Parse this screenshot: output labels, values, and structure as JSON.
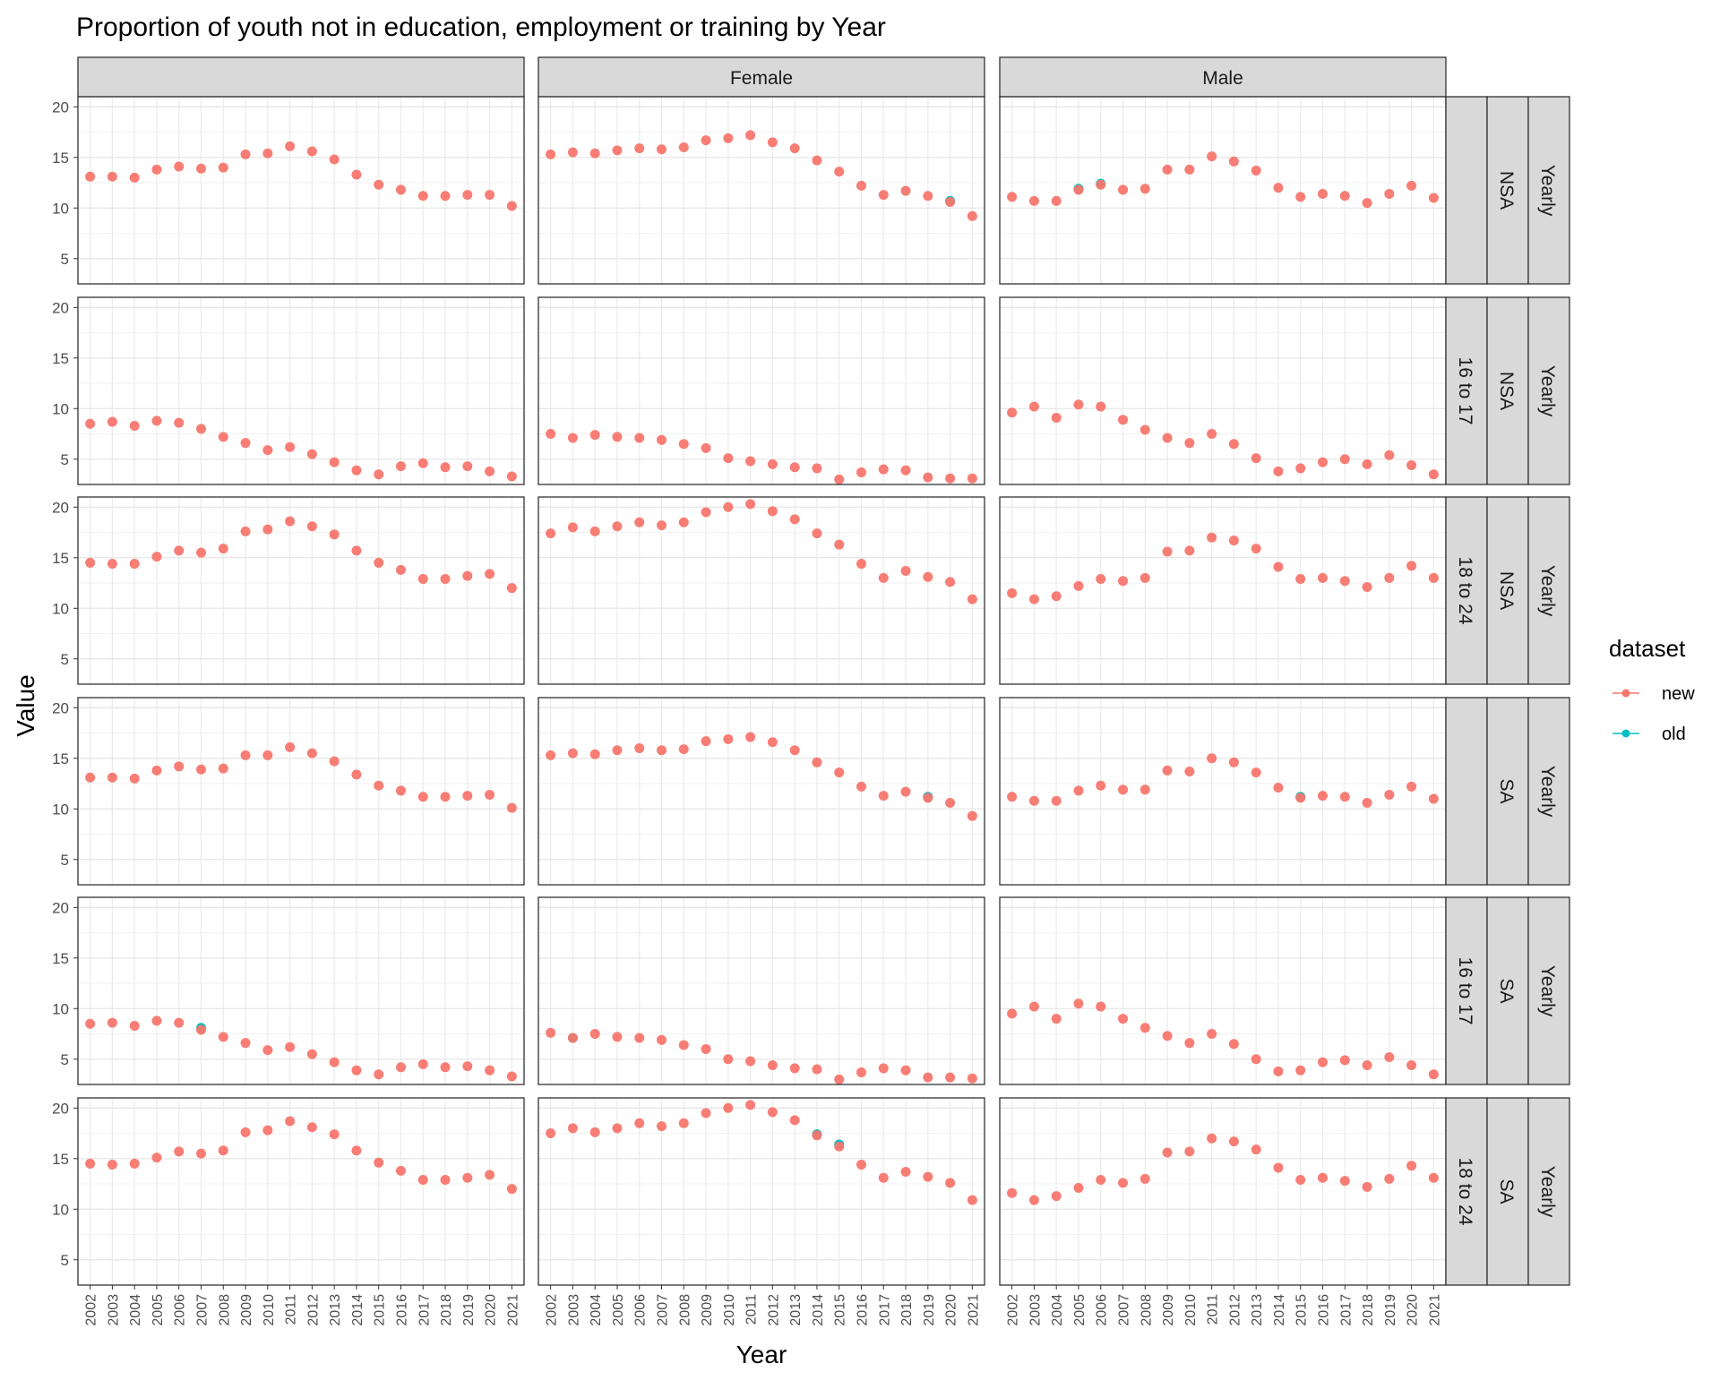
{
  "chart_data": {
    "type": "scatter",
    "title": "Proportion of youth not in education, employment or training by Year",
    "xlabel": "Year",
    "ylabel": "Value",
    "ylim": [
      2.5,
      21
    ],
    "y_ticks": [
      5,
      10,
      15,
      20
    ],
    "x": [
      2002,
      2003,
      2004,
      2005,
      2006,
      2007,
      2008,
      2009,
      2010,
      2011,
      2012,
      2013,
      2014,
      2015,
      2016,
      2017,
      2018,
      2019,
      2020,
      2021
    ],
    "grid": true,
    "col_strips": [
      "",
      "Female",
      "Male"
    ],
    "row_strips": [
      [
        "",
        "NSA",
        "Yearly"
      ],
      [
        "16 to 17",
        "NSA",
        "Yearly"
      ],
      [
        "18 to 24",
        "NSA",
        "Yearly"
      ],
      [
        "",
        "SA",
        "Yearly"
      ],
      [
        "16 to 17",
        "SA",
        "Yearly"
      ],
      [
        "18 to 24",
        "SA",
        "Yearly"
      ]
    ],
    "legend": {
      "title": "dataset",
      "position": "right",
      "entries": [
        {
          "label": "new",
          "color": "#F8766D"
        },
        {
          "label": "old",
          "color": "#00BFC4"
        }
      ]
    },
    "series_colors": {
      "new": "#F8766D",
      "old": "#00BFC4"
    },
    "panels": [
      [
        [
          13.1,
          13.1,
          13.0,
          13.8,
          14.1,
          13.9,
          14.0,
          15.3,
          15.4,
          16.1,
          15.6,
          14.8,
          13.3,
          12.3,
          11.8,
          11.2,
          11.2,
          11.3,
          11.3,
          10.2
        ],
        [
          15.3,
          15.5,
          15.4,
          15.7,
          15.9,
          15.8,
          16.0,
          16.7,
          16.9,
          17.2,
          16.5,
          15.9,
          14.7,
          13.6,
          12.2,
          11.3,
          11.7,
          11.2,
          10.6,
          9.2
        ],
        [
          11.1,
          10.7,
          10.7,
          11.8,
          12.3,
          11.8,
          11.9,
          13.8,
          13.8,
          15.1,
          14.6,
          13.7,
          12.0,
          11.1,
          11.4,
          11.2,
          10.5,
          11.4,
          12.2,
          11.0
        ]
      ],
      [
        [
          8.5,
          8.7,
          8.3,
          8.8,
          8.6,
          8.0,
          7.2,
          6.6,
          5.9,
          6.2,
          5.5,
          4.7,
          3.9,
          3.5,
          4.3,
          4.6,
          4.2,
          4.3,
          3.8,
          3.3
        ],
        [
          7.5,
          7.1,
          7.4,
          7.2,
          7.1,
          6.9,
          6.5,
          6.1,
          5.1,
          4.8,
          4.5,
          4.2,
          4.1,
          3.0,
          3.7,
          4.0,
          3.9,
          3.2,
          3.1,
          3.1
        ],
        [
          9.6,
          10.2,
          9.1,
          10.4,
          10.2,
          8.9,
          7.9,
          7.1,
          6.6,
          7.5,
          6.5,
          5.1,
          3.8,
          4.1,
          4.7,
          5.0,
          4.5,
          5.4,
          4.4,
          3.5
        ]
      ],
      [
        [
          14.5,
          14.4,
          14.4,
          15.1,
          15.7,
          15.5,
          15.9,
          17.6,
          17.8,
          18.6,
          18.1,
          17.3,
          15.7,
          14.5,
          13.8,
          12.9,
          12.9,
          13.2,
          13.4,
          12.0
        ],
        [
          17.4,
          18.0,
          17.6,
          18.1,
          18.5,
          18.2,
          18.5,
          19.5,
          20.0,
          20.3,
          19.6,
          18.8,
          17.4,
          16.3,
          14.4,
          13.0,
          13.7,
          13.1,
          12.6,
          10.9
        ],
        [
          11.5,
          10.9,
          11.2,
          12.2,
          12.9,
          12.7,
          13.0,
          15.6,
          15.7,
          17.0,
          16.7,
          15.9,
          14.1,
          12.9,
          13.0,
          12.7,
          12.1,
          13.0,
          14.2,
          13.0
        ]
      ],
      [
        [
          13.1,
          13.1,
          13.0,
          13.8,
          14.2,
          13.9,
          14.0,
          15.3,
          15.3,
          16.1,
          15.5,
          14.7,
          13.4,
          12.3,
          11.8,
          11.2,
          11.2,
          11.3,
          11.4,
          10.1
        ],
        [
          15.3,
          15.5,
          15.4,
          15.8,
          16.0,
          15.8,
          15.9,
          16.7,
          16.9,
          17.1,
          16.6,
          15.8,
          14.6,
          13.6,
          12.2,
          11.3,
          11.7,
          11.1,
          10.6,
          9.3
        ],
        [
          11.2,
          10.8,
          10.8,
          11.8,
          12.3,
          11.9,
          11.9,
          13.8,
          13.7,
          15.0,
          14.6,
          13.6,
          12.1,
          11.1,
          11.3,
          11.2,
          10.6,
          11.4,
          12.2,
          11.0
        ]
      ],
      [
        [
          8.5,
          8.6,
          8.3,
          8.8,
          8.6,
          7.9,
          7.2,
          6.6,
          5.9,
          6.2,
          5.5,
          4.7,
          3.9,
          3.5,
          4.2,
          4.5,
          4.2,
          4.3,
          3.9,
          3.3
        ],
        [
          7.6,
          7.1,
          7.5,
          7.2,
          7.1,
          6.9,
          6.4,
          6.0,
          5.0,
          4.8,
          4.4,
          4.1,
          4.0,
          3.0,
          3.7,
          4.1,
          3.9,
          3.2,
          3.2,
          3.1
        ],
        [
          9.5,
          10.2,
          9.0,
          10.5,
          10.2,
          9.0,
          8.1,
          7.3,
          6.6,
          7.5,
          6.5,
          5.0,
          3.8,
          3.9,
          4.7,
          4.9,
          4.4,
          5.2,
          4.4,
          3.5
        ]
      ],
      [
        [
          14.5,
          14.4,
          14.5,
          15.1,
          15.7,
          15.5,
          15.8,
          17.6,
          17.8,
          18.7,
          18.1,
          17.4,
          15.8,
          14.6,
          13.8,
          12.9,
          12.9,
          13.1,
          13.4,
          12.0
        ],
        [
          17.5,
          18.0,
          17.6,
          18.0,
          18.5,
          18.2,
          18.5,
          19.5,
          20.0,
          20.3,
          19.6,
          18.8,
          17.3,
          16.2,
          14.4,
          13.1,
          13.7,
          13.2,
          12.6,
          10.9
        ],
        [
          11.6,
          10.9,
          11.3,
          12.1,
          12.9,
          12.6,
          13.0,
          15.6,
          15.7,
          17.0,
          16.7,
          15.9,
          14.1,
          12.9,
          13.1,
          12.8,
          12.2,
          13.0,
          14.3,
          13.1
        ]
      ]
    ],
    "old_points": [
      {
        "row": 0,
        "col": 1,
        "x": 2020,
        "y": 10.7
      },
      {
        "row": 0,
        "col": 2,
        "x": 2005,
        "y": 11.9
      },
      {
        "row": 0,
        "col": 2,
        "x": 2006,
        "y": 12.4
      },
      {
        "row": 3,
        "col": 1,
        "x": 2019,
        "y": 11.2
      },
      {
        "row": 3,
        "col": 2,
        "x": 2015,
        "y": 11.2
      },
      {
        "row": 4,
        "col": 0,
        "x": 2007,
        "y": 8.1
      },
      {
        "row": 4,
        "col": 1,
        "x": 2003,
        "y": 7.1
      },
      {
        "row": 5,
        "col": 1,
        "x": 2014,
        "y": 17.4
      },
      {
        "row": 5,
        "col": 1,
        "x": 2015,
        "y": 16.4
      }
    ]
  }
}
